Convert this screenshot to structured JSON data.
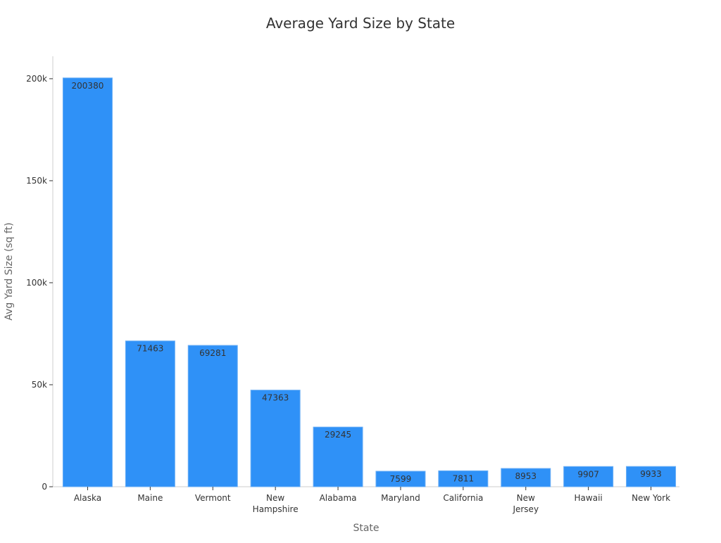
{
  "chart_data": {
    "type": "bar",
    "title": "Average Yard Size by State",
    "xlabel": "State",
    "ylabel": "Avg Yard Size (sq ft)",
    "categories": [
      "Alaska",
      "Maine",
      "Vermont",
      "New Hampshire",
      "Alabama",
      "Maryland",
      "California",
      "New Jersey",
      "Hawaii",
      "New York"
    ],
    "values": [
      200380,
      71463,
      69281,
      47363,
      29245,
      7599,
      7811,
      8953,
      9907,
      9933
    ],
    "data_labels": [
      "200380",
      "71463",
      "69281",
      "47363",
      "29245",
      "7599",
      "7811",
      "8953",
      "9907",
      "9933"
    ],
    "ylim": [
      0,
      211000
    ],
    "yticks": [
      0,
      50000,
      100000,
      150000,
      200000
    ],
    "ytick_labels": [
      "0",
      "50k",
      "100k",
      "150k",
      "200k"
    ],
    "grid": false,
    "legend": "none",
    "bar_color": "#2f91f7",
    "bar_edge_color": "#6aaef5",
    "label_color": "#333333"
  }
}
